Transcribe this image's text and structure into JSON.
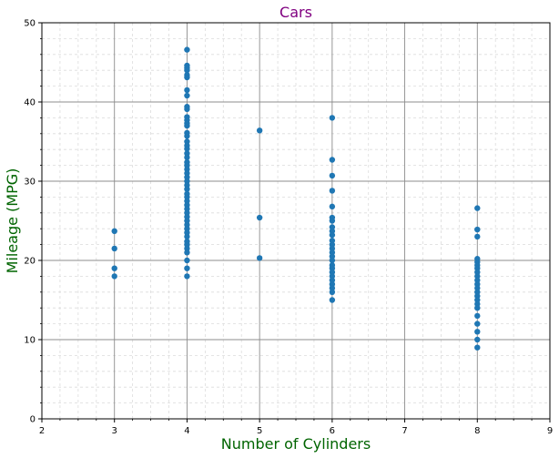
{
  "chart_data": {
    "type": "scatter",
    "title": "Cars",
    "xlabel": "Number of Cylinders",
    "ylabel": "Mileage (MPG)",
    "xlim": [
      2,
      9
    ],
    "ylim": [
      0,
      50
    ],
    "x_ticks": [
      2,
      3,
      4,
      5,
      6,
      7,
      8,
      9
    ],
    "y_ticks": [
      0,
      10,
      20,
      30,
      40,
      50
    ],
    "grid": true,
    "colors": {
      "points": "#1f77b4",
      "title": "#800080",
      "axis_labels": "#006400",
      "major_grid": "#8c8c8c",
      "minor_grid": "#dcdcdc"
    },
    "points": [
      {
        "x": 3,
        "y": 23.7
      },
      {
        "x": 3,
        "y": 21.5
      },
      {
        "x": 3,
        "y": 19.0
      },
      {
        "x": 3,
        "y": 18.0
      },
      {
        "x": 4,
        "y": 46.6
      },
      {
        "x": 4,
        "y": 44.6
      },
      {
        "x": 4,
        "y": 44.3
      },
      {
        "x": 4,
        "y": 44.0
      },
      {
        "x": 4,
        "y": 43.4
      },
      {
        "x": 4,
        "y": 43.1
      },
      {
        "x": 4,
        "y": 41.5
      },
      {
        "x": 4,
        "y": 40.8
      },
      {
        "x": 4,
        "y": 39.4
      },
      {
        "x": 4,
        "y": 39.1
      },
      {
        "x": 4,
        "y": 38.1
      },
      {
        "x": 4,
        "y": 37.7
      },
      {
        "x": 4,
        "y": 37.3
      },
      {
        "x": 4,
        "y": 37.0
      },
      {
        "x": 4,
        "y": 36.1
      },
      {
        "x": 4,
        "y": 35.7
      },
      {
        "x": 4,
        "y": 35.0
      },
      {
        "x": 4,
        "y": 34.5
      },
      {
        "x": 4,
        "y": 34.1
      },
      {
        "x": 4,
        "y": 33.5
      },
      {
        "x": 4,
        "y": 33.0
      },
      {
        "x": 4,
        "y": 32.4
      },
      {
        "x": 4,
        "y": 32.0
      },
      {
        "x": 4,
        "y": 31.5
      },
      {
        "x": 4,
        "y": 31.0
      },
      {
        "x": 4,
        "y": 30.5
      },
      {
        "x": 4,
        "y": 30.0
      },
      {
        "x": 4,
        "y": 29.5
      },
      {
        "x": 4,
        "y": 29.0
      },
      {
        "x": 4,
        "y": 28.4
      },
      {
        "x": 4,
        "y": 28.0
      },
      {
        "x": 4,
        "y": 27.5
      },
      {
        "x": 4,
        "y": 27.0
      },
      {
        "x": 4,
        "y": 26.5
      },
      {
        "x": 4,
        "y": 26.0
      },
      {
        "x": 4,
        "y": 25.5
      },
      {
        "x": 4,
        "y": 25.0
      },
      {
        "x": 4,
        "y": 24.5
      },
      {
        "x": 4,
        "y": 24.0
      },
      {
        "x": 4,
        "y": 23.5
      },
      {
        "x": 4,
        "y": 23.0
      },
      {
        "x": 4,
        "y": 22.4
      },
      {
        "x": 4,
        "y": 22.0
      },
      {
        "x": 4,
        "y": 21.5
      },
      {
        "x": 4,
        "y": 21.0
      },
      {
        "x": 4,
        "y": 20.0
      },
      {
        "x": 4,
        "y": 19.0
      },
      {
        "x": 4,
        "y": 18.0
      },
      {
        "x": 5,
        "y": 36.4
      },
      {
        "x": 5,
        "y": 25.4
      },
      {
        "x": 5,
        "y": 20.3
      },
      {
        "x": 6,
        "y": 38.0
      },
      {
        "x": 6,
        "y": 32.7
      },
      {
        "x": 6,
        "y": 30.7
      },
      {
        "x": 6,
        "y": 28.8
      },
      {
        "x": 6,
        "y": 26.8
      },
      {
        "x": 6,
        "y": 25.4
      },
      {
        "x": 6,
        "y": 25.0
      },
      {
        "x": 6,
        "y": 24.2
      },
      {
        "x": 6,
        "y": 23.7
      },
      {
        "x": 6,
        "y": 23.2
      },
      {
        "x": 6,
        "y": 22.5
      },
      {
        "x": 6,
        "y": 22.0
      },
      {
        "x": 6,
        "y": 21.5
      },
      {
        "x": 6,
        "y": 21.0
      },
      {
        "x": 6,
        "y": 20.5
      },
      {
        "x": 6,
        "y": 20.0
      },
      {
        "x": 6,
        "y": 19.4
      },
      {
        "x": 6,
        "y": 19.0
      },
      {
        "x": 6,
        "y": 18.5
      },
      {
        "x": 6,
        "y": 18.0
      },
      {
        "x": 6,
        "y": 17.5
      },
      {
        "x": 6,
        "y": 17.0
      },
      {
        "x": 6,
        "y": 16.5
      },
      {
        "x": 6,
        "y": 16.0
      },
      {
        "x": 6,
        "y": 15.0
      },
      {
        "x": 8,
        "y": 26.6
      },
      {
        "x": 8,
        "y": 23.9
      },
      {
        "x": 8,
        "y": 23.0
      },
      {
        "x": 8,
        "y": 20.2
      },
      {
        "x": 8,
        "y": 19.8
      },
      {
        "x": 8,
        "y": 19.4
      },
      {
        "x": 8,
        "y": 19.0
      },
      {
        "x": 8,
        "y": 18.5
      },
      {
        "x": 8,
        "y": 18.0
      },
      {
        "x": 8,
        "y": 17.5
      },
      {
        "x": 8,
        "y": 17.0
      },
      {
        "x": 8,
        "y": 16.5
      },
      {
        "x": 8,
        "y": 16.0
      },
      {
        "x": 8,
        "y": 15.5
      },
      {
        "x": 8,
        "y": 15.0
      },
      {
        "x": 8,
        "y": 14.5
      },
      {
        "x": 8,
        "y": 14.0
      },
      {
        "x": 8,
        "y": 13.0
      },
      {
        "x": 8,
        "y": 12.0
      },
      {
        "x": 8,
        "y": 11.0
      },
      {
        "x": 8,
        "y": 10.0
      },
      {
        "x": 8,
        "y": 9.0
      }
    ]
  }
}
